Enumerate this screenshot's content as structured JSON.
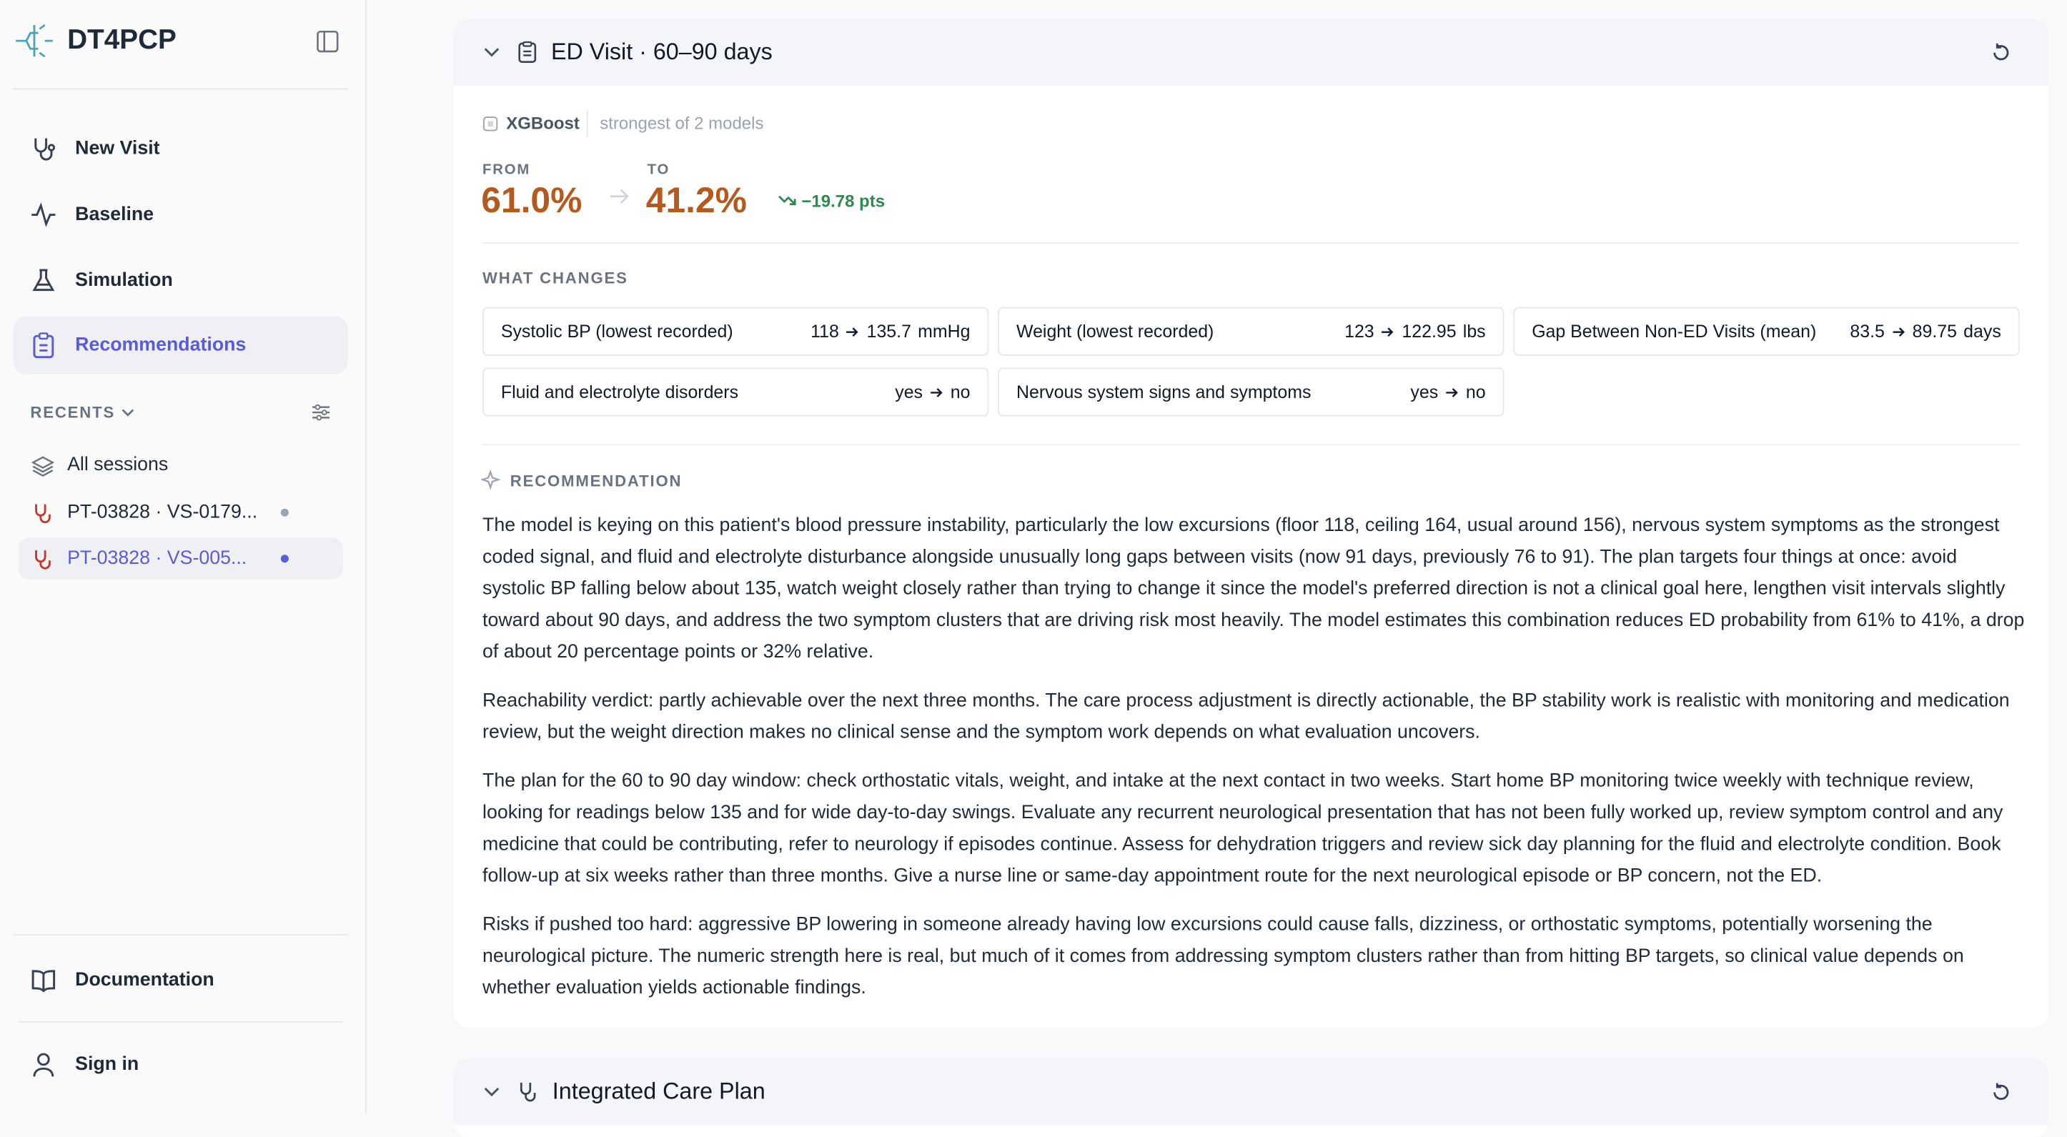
{
  "sidebar": {
    "brand": "DT4PCP",
    "nav": [
      "New Visit",
      "Baseline",
      "Simulation",
      "Recommendations"
    ],
    "recents_label": "RECENTS",
    "sessions": [
      "All sessions",
      "PT-03828 · VS-0179...",
      "PT-03828 · VS-005..."
    ],
    "footer": [
      "Documentation",
      "Sign in"
    ]
  },
  "card": {
    "title": "ED Visit · 60–90 days",
    "model": "XGBoost",
    "model_note": "strongest of 2 models",
    "from_label": "FROM",
    "from": "61.0%",
    "to_label": "TO",
    "to": "41.2%",
    "delta": "−19.78 pts",
    "changes_label": "WHAT CHANGES",
    "changes": [
      {
        "name": "Systolic BP (lowest recorded)",
        "from": "118",
        "to": "135.7",
        "unit": "mmHg"
      },
      {
        "name": "Weight (lowest recorded)",
        "from": "123",
        "to": "122.95",
        "unit": "lbs"
      },
      {
        "name": "Gap Between Non-ED Visits (mean)",
        "from": "83.5",
        "to": "89.75",
        "unit": "days"
      },
      {
        "name": "Fluid and electrolyte disorders",
        "from": "yes",
        "to": "no"
      },
      {
        "name": "Nervous system signs and symptoms",
        "from": "yes",
        "to": "no"
      }
    ],
    "recommendation_label": "RECOMMENDATION",
    "paragraphs": [
      "The model is keying on this patient's blood pressure instability, particularly the low excursions (floor 118, ceiling 164, usual around 156), nervous system symptoms as the strongest coded signal, and fluid and electrolyte disturbance alongside unusually long gaps between visits (now 91 days, previously 76 to 91). The plan targets four things at once: avoid systolic BP falling below about 135, watch weight closely rather than trying to change it since the model's preferred direction is not a clinical goal here, lengthen visit intervals slightly toward about 90 days, and address the two symptom clusters that are driving risk most heavily. The model estimates this combination reduces ED probability from 61% to 41%, a drop of about 20 percentage points or 32% relative.",
      "Reachability verdict: partly achievable over the next three months. The care process adjustment is directly actionable, the BP stability work is realistic with monitoring and medication review, but the weight direction makes no clinical sense and the symptom work depends on what evaluation uncovers.",
      "The plan for the 60 to 90 day window: check orthostatic vitals, weight, and intake at the next contact in two weeks. Start home BP monitoring twice weekly with technique review, looking for readings below 135 and for wide day-to-day swings. Evaluate any recurrent neurological presentation that has not been fully worked up, review symptom control and any medicine that could be contributing, refer to neurology if episodes continue. Assess for dehydration triggers and review sick day planning for the fluid and electrolyte condition. Book follow-up at six weeks rather than three months. Give a nurse line or same-day appointment route for the next neurological episode or BP concern, not the ED.",
      "Risks if pushed too hard: aggressive BP lowering in someone already having low excursions could cause falls, dizziness, or orthostatic symptoms, potentially worsening the neurological picture. The numeric strength here is real, but much of it comes from addressing symptom clusters rather than from hitting BP targets, so clinical value depends on whether evaluation yields actionable findings."
    ]
  },
  "card2": {
    "title": "Integrated Care Plan"
  }
}
